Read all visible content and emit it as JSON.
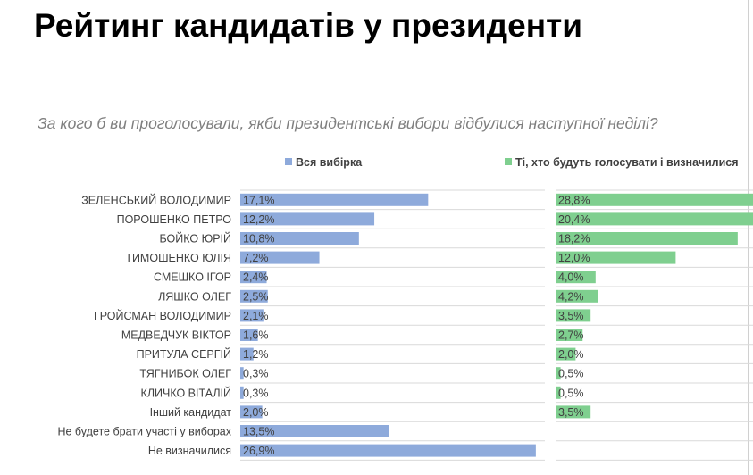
{
  "title": "Рейтинг кандидатів у президенти",
  "subtitle": "За кого б ви проголосували, якби президентські вибори відбулися наступної неділі?",
  "colors": {
    "series1": "#8eaadb",
    "series2": "#7fcf8f",
    "grid": "#d9d9d9",
    "text": "#404040"
  },
  "chart_data": {
    "type": "bar",
    "orientation": "horizontal",
    "layout": "two panels side by side, one per series",
    "categories": [
      "ЗЕЛЕНСЬКИЙ ВОЛОДИМИР",
      "ПОРОШЕНКО ПЕТРО",
      "БОЙКО ЮРІЙ",
      "ТИМОШЕНКО ЮЛІЯ",
      "СМЕШКО ІГОР",
      "ЛЯШКО ОЛЕГ",
      "ГРОЙСМАН ВОЛОДИМИР",
      "МЕДВЕДЧУК ВІКТОР",
      "ПРИТУЛА СЕРГІЙ",
      "ТЯГНИБОК ОЛЕГ",
      "КЛИЧКО ВІТАЛІЙ",
      "Інший кандидат",
      "Не будете брати участі у виборах",
      "Не визначилися"
    ],
    "series": [
      {
        "name": "Вся вибірка",
        "values": [
          17.1,
          12.2,
          10.8,
          7.2,
          2.4,
          2.5,
          2.1,
          1.6,
          1.2,
          0.3,
          0.3,
          2.0,
          13.5,
          26.9
        ],
        "labels": [
          "17,1%",
          "12,2%",
          "10,8%",
          "7,2%",
          "2,4%",
          "2,5%",
          "2,1%",
          "1,6%",
          "1,2%",
          "0,3%",
          "0,3%",
          "2,0%",
          "13,5%",
          "26,9%"
        ]
      },
      {
        "name": "Ті, хто будуть голосувати і визначилися",
        "values": [
          28.8,
          20.4,
          18.2,
          12.0,
          4.0,
          4.2,
          3.5,
          2.7,
          2.0,
          0.5,
          0.5,
          3.5,
          null,
          null
        ],
        "labels": [
          "28,8%",
          "20,4%",
          "18,2%",
          "12,0%",
          "4,0%",
          "4,2%",
          "3,5%",
          "2,7%",
          "2,0%",
          "0,5%",
          "0,5%",
          "3,5%",
          "",
          ""
        ]
      }
    ],
    "unit": "%",
    "legend_position": "top"
  }
}
